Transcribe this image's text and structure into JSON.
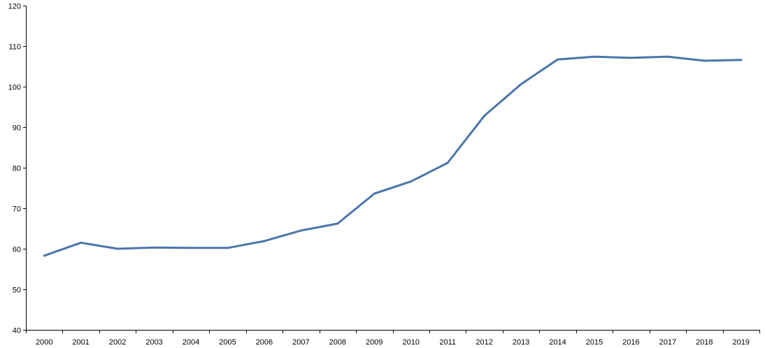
{
  "chart_data": {
    "type": "line",
    "title": "",
    "xlabel": "",
    "ylabel": "",
    "x": [
      "2000",
      "2001",
      "2002",
      "2003",
      "2004",
      "2005",
      "2006",
      "2007",
      "2008",
      "2009",
      "2010",
      "2011",
      "2012",
      "2013",
      "2014",
      "2015",
      "2016",
      "2017",
      "2018",
      "2019"
    ],
    "series": [
      {
        "values": [
          58.3,
          61.5,
          60.0,
          60.3,
          60.2,
          60.2,
          61.9,
          64.5,
          66.2,
          73.6,
          76.6,
          81.2,
          92.8,
          100.6,
          106.7,
          107.4,
          107.1,
          107.4,
          106.4,
          106.6
        ],
        "color": "#4a76aa"
      }
    ],
    "ylim": [
      40,
      120
    ],
    "yticks": [
      "40",
      "50",
      "60",
      "70",
      "80",
      "90",
      "100",
      "110",
      "120"
    ],
    "grid": false,
    "legend": "none"
  }
}
